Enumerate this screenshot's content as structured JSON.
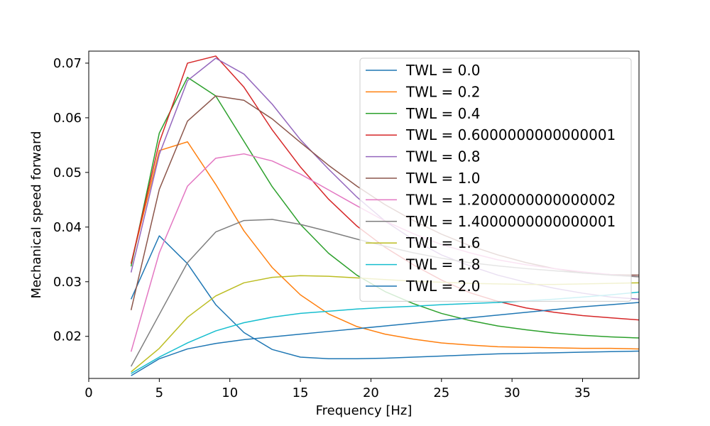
{
  "chart_data": {
    "type": "line",
    "title": "",
    "xlabel": "Frequency [Hz]",
    "ylabel": "Mechanical speed forward",
    "xlim": [
      0,
      39
    ],
    "ylim": [
      0.0123,
      0.0722
    ],
    "xticks": [
      {
        "value": 0,
        "label": "0"
      },
      {
        "value": 5,
        "label": "5"
      },
      {
        "value": 10,
        "label": "10"
      },
      {
        "value": 15,
        "label": "15"
      },
      {
        "value": 20,
        "label": "20"
      },
      {
        "value": 25,
        "label": "25"
      },
      {
        "value": 30,
        "label": "30"
      },
      {
        "value": 35,
        "label": "35"
      }
    ],
    "yticks": [
      {
        "value": 0.02,
        "label": "0.02"
      },
      {
        "value": 0.03,
        "label": "0.03"
      },
      {
        "value": 0.04,
        "label": "0.04"
      },
      {
        "value": 0.05,
        "label": "0.05"
      },
      {
        "value": 0.06,
        "label": "0.06"
      },
      {
        "value": 0.07,
        "label": "0.07"
      }
    ],
    "grid": false,
    "legend_position": "upper-right",
    "x": [
      3,
      5,
      7,
      9,
      11,
      13,
      15,
      17,
      19,
      21,
      23,
      25,
      27,
      29,
      31,
      33,
      35,
      37,
      39
    ],
    "series": [
      {
        "name": "TWL = 0.0",
        "color": "#1f77b4",
        "values": [
          0.0268,
          0.0384,
          0.0333,
          0.0258,
          0.0207,
          0.0176,
          0.0162,
          0.0159,
          0.0159,
          0.016,
          0.0162,
          0.0164,
          0.0166,
          0.0168,
          0.0169,
          0.017,
          0.0171,
          0.0172,
          0.0173
        ]
      },
      {
        "name": "TWL = 0.2",
        "color": "#ff7f0e",
        "values": [
          0.0333,
          0.054,
          0.0556,
          0.0478,
          0.0393,
          0.0326,
          0.0276,
          0.0241,
          0.0218,
          0.0204,
          0.0195,
          0.0188,
          0.0184,
          0.0181,
          0.018,
          0.0179,
          0.0178,
          0.0178,
          0.0177
        ]
      },
      {
        "name": "TWL = 0.4",
        "color": "#2ca02c",
        "values": [
          0.0328,
          0.0572,
          0.0674,
          0.064,
          0.0557,
          0.0474,
          0.0405,
          0.0352,
          0.0312,
          0.0282,
          0.026,
          0.0242,
          0.0229,
          0.0219,
          0.0212,
          0.0206,
          0.0202,
          0.0199,
          0.0197
        ]
      },
      {
        "name": "TWL = 0.6000000000000001",
        "color": "#d62728",
        "values": [
          0.0333,
          0.0555,
          0.07,
          0.0713,
          0.0656,
          0.0578,
          0.051,
          0.0451,
          0.0402,
          0.0363,
          0.0331,
          0.0303,
          0.028,
          0.0264,
          0.0252,
          0.0244,
          0.0238,
          0.0234,
          0.023
        ]
      },
      {
        "name": "TWL = 0.8",
        "color": "#9467bd",
        "values": [
          0.0317,
          0.0533,
          0.0668,
          0.0709,
          0.068,
          0.0625,
          0.056,
          0.0506,
          0.0455,
          0.0411,
          0.0377,
          0.0349,
          0.0329,
          0.0312,
          0.0299,
          0.0288,
          0.0279,
          0.0272,
          0.0268
        ]
      },
      {
        "name": "TWL = 1.0",
        "color": "#8c564b",
        "values": [
          0.0248,
          0.0469,
          0.0594,
          0.064,
          0.0632,
          0.0598,
          0.0555,
          0.0513,
          0.0475,
          0.0441,
          0.0412,
          0.0387,
          0.0366,
          0.0349,
          0.0335,
          0.0324,
          0.0316,
          0.0313,
          0.0312
        ]
      },
      {
        "name": "TWL = 1.2000000000000002",
        "color": "#e377c2",
        "values": [
          0.0172,
          0.0353,
          0.0475,
          0.0526,
          0.0534,
          0.0521,
          0.0497,
          0.0468,
          0.0439,
          0.0411,
          0.0388,
          0.0368,
          0.0353,
          0.034,
          0.0331,
          0.0324,
          0.0318,
          0.0313,
          0.0309
        ]
      },
      {
        "name": "TWL = 1.4000000000000001",
        "color": "#7f7f7f",
        "values": [
          0.0145,
          0.024,
          0.0335,
          0.0391,
          0.0412,
          0.0414,
          0.0405,
          0.0392,
          0.0378,
          0.0365,
          0.0353,
          0.0343,
          0.0335,
          0.0329,
          0.0324,
          0.032,
          0.0316,
          0.0312,
          0.0309
        ]
      },
      {
        "name": "TWL = 1.6",
        "color": "#bcbd22",
        "values": [
          0.0135,
          0.0178,
          0.0235,
          0.0274,
          0.0298,
          0.0308,
          0.0311,
          0.031,
          0.0307,
          0.0304,
          0.0301,
          0.0299,
          0.0297,
          0.0296,
          0.0295,
          0.0295,
          0.0296,
          0.0297,
          0.0298
        ]
      },
      {
        "name": "TWL = 1.8",
        "color": "#17becf",
        "values": [
          0.0132,
          0.0162,
          0.0188,
          0.021,
          0.0225,
          0.0235,
          0.0242,
          0.0246,
          0.025,
          0.0253,
          0.0255,
          0.0258,
          0.026,
          0.0262,
          0.0265,
          0.0268,
          0.0272,
          0.0276,
          0.0281
        ]
      },
      {
        "name": "TWL = 2.0",
        "color": "#1f77b4",
        "values": [
          0.0128,
          0.0159,
          0.0177,
          0.0187,
          0.0194,
          0.0199,
          0.0204,
          0.0209,
          0.0214,
          0.0219,
          0.0224,
          0.0229,
          0.0234,
          0.0239,
          0.0244,
          0.0249,
          0.0254,
          0.0258,
          0.0262
        ]
      }
    ]
  }
}
